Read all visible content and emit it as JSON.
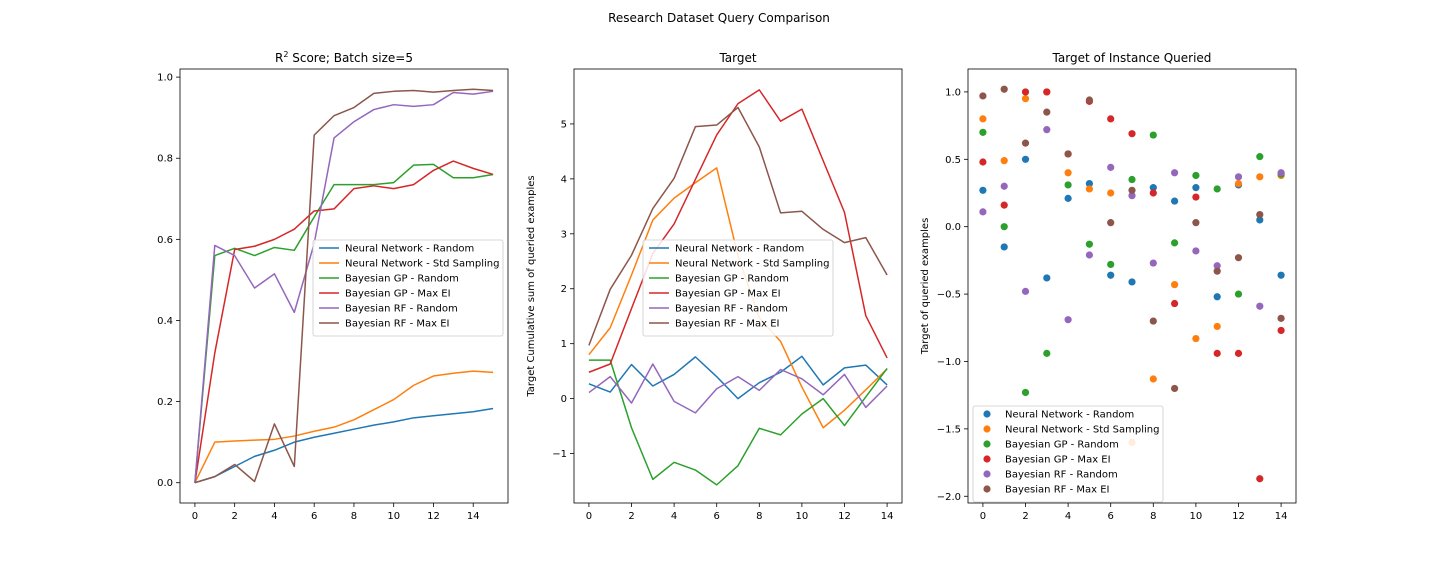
{
  "figure": {
    "suptitle": "Research Dataset Query Comparison"
  },
  "series_names": [
    "Neural Network - Random",
    "Neural Network - Std Sampling",
    "Bayesian GP - Random",
    "Bayesian GP - Max EI",
    "Bayesian RF - Random",
    "Bayesian RF - Max EI"
  ],
  "colors": [
    "#1f77b4",
    "#ff7f0e",
    "#2ca02c",
    "#d62728",
    "#9467bd",
    "#8c564b"
  ],
  "chart_data": [
    {
      "type": "line",
      "title": "R² Score; Batch size=5",
      "xlabel": "",
      "ylabel": "",
      "xlim": [
        -0.75,
        15.75
      ],
      "ylim": [
        -0.05,
        1.02
      ],
      "xticks": [
        0,
        2,
        4,
        6,
        8,
        10,
        12,
        14
      ],
      "yticks": [
        0.0,
        0.2,
        0.4,
        0.6,
        0.8,
        1.0
      ],
      "ytick_labels": [
        "0.0",
        "0.2",
        "0.4",
        "0.6",
        "0.8",
        "1.0"
      ],
      "legend": "center-right",
      "x": [
        0,
        1,
        2,
        3,
        4,
        5,
        6,
        7,
        8,
        9,
        10,
        11,
        12,
        13,
        14,
        15
      ],
      "series": [
        {
          "name": "Neural Network - Random",
          "values": [
            0.0,
            0.015,
            0.04,
            0.065,
            0.08,
            0.1,
            0.112,
            0.122,
            0.132,
            0.142,
            0.15,
            0.16,
            0.165,
            0.17,
            0.175,
            0.183
          ]
        },
        {
          "name": "Neural Network - Std Sampling",
          "values": [
            0.0,
            0.1,
            0.103,
            0.105,
            0.107,
            0.115,
            0.127,
            0.137,
            0.155,
            0.18,
            0.205,
            0.24,
            0.263,
            0.27,
            0.275,
            0.272
          ]
        },
        {
          "name": "Bayesian GP - Random",
          "values": [
            0.0,
            0.56,
            0.578,
            0.56,
            0.58,
            0.573,
            0.655,
            0.735,
            0.735,
            0.735,
            0.74,
            0.783,
            0.785,
            0.752,
            0.752,
            0.76
          ]
        },
        {
          "name": "Bayesian GP - Max EI",
          "values": [
            0.0,
            0.32,
            0.575,
            0.583,
            0.6,
            0.625,
            0.67,
            0.675,
            0.725,
            0.732,
            0.725,
            0.735,
            0.77,
            0.793,
            0.775,
            0.76
          ]
        },
        {
          "name": "Bayesian RF - Random",
          "values": [
            0.0,
            0.585,
            0.56,
            0.48,
            0.515,
            0.42,
            0.59,
            0.85,
            0.89,
            0.92,
            0.932,
            0.928,
            0.932,
            0.962,
            0.958,
            0.965
          ]
        },
        {
          "name": "Bayesian RF - Max EI",
          "values": [
            0.0,
            0.015,
            0.045,
            0.003,
            0.145,
            0.04,
            0.857,
            0.905,
            0.925,
            0.96,
            0.965,
            0.967,
            0.963,
            0.967,
            0.97,
            0.967
          ]
        }
      ]
    },
    {
      "type": "line",
      "title": "Target",
      "xlabel": "",
      "ylabel": "Target Cumulative sum of queried examples",
      "xlim": [
        -0.7,
        14.7
      ],
      "ylim": [
        -1.9,
        6.0
      ],
      "xticks": [
        0,
        2,
        4,
        6,
        8,
        10,
        12,
        14
      ],
      "yticks": [
        -1,
        0,
        1,
        2,
        3,
        4,
        5
      ],
      "ytick_labels": [
        "−1",
        "0",
        "1",
        "2",
        "3",
        "4",
        "5"
      ],
      "legend": "center",
      "x": [
        0,
        1,
        2,
        3,
        4,
        5,
        6,
        7,
        8,
        9,
        10,
        11,
        12,
        13,
        14
      ],
      "series": [
        {
          "name": "Neural Network - Random",
          "values": [
            0.27,
            0.12,
            0.62,
            0.23,
            0.44,
            0.76,
            0.4,
            0.0,
            0.29,
            0.48,
            0.77,
            0.25,
            0.56,
            0.61,
            0.25
          ]
        },
        {
          "name": "Neural Network - Std Sampling",
          "values": [
            0.8,
            1.29,
            2.25,
            3.25,
            3.65,
            3.93,
            4.2,
            2.6,
            1.47,
            1.04,
            0.21,
            -0.53,
            -0.21,
            0.16,
            0.54
          ]
        },
        {
          "name": "Bayesian GP - Random",
          "values": [
            0.7,
            0.7,
            -0.53,
            -1.47,
            -1.16,
            -1.3,
            -1.57,
            -1.22,
            -0.54,
            -0.66,
            -0.28,
            0.0,
            -0.49,
            0.03,
            0.55
          ]
        },
        {
          "name": "Bayesian GP - Max EI",
          "values": [
            0.48,
            0.63,
            1.64,
            2.64,
            3.18,
            3.99,
            4.8,
            5.37,
            5.62,
            5.05,
            5.27,
            4.33,
            3.39,
            1.51,
            0.74
          ]
        },
        {
          "name": "Bayesian RF - Random",
          "values": [
            0.11,
            0.4,
            -0.08,
            0.63,
            -0.05,
            -0.26,
            0.18,
            0.4,
            0.15,
            0.53,
            0.36,
            0.07,
            0.44,
            -0.16,
            0.23
          ]
        },
        {
          "name": "Bayesian RF - Max EI",
          "values": [
            0.97,
            1.99,
            2.61,
            3.46,
            4.01,
            4.95,
            4.98,
            5.3,
            4.58,
            3.38,
            3.41,
            3.08,
            2.84,
            2.93,
            2.25
          ]
        }
      ]
    },
    {
      "type": "scatter",
      "title": "Target of Instance Queried",
      "xlabel": "",
      "ylabel": "Target of queried examples",
      "xlim": [
        -0.7,
        14.7
      ],
      "ylim": [
        -2.05,
        1.17
      ],
      "xticks": [
        0,
        2,
        4,
        6,
        8,
        10,
        12,
        14
      ],
      "yticks": [
        -2.0,
        -1.5,
        -1.0,
        -0.5,
        0.0,
        0.5,
        1.0
      ],
      "ytick_labels": [
        "−2.0",
        "−1.5",
        "−1.0",
        "−0.5",
        "0.0",
        "0.5",
        "1.0"
      ],
      "legend": "lower-left",
      "x": [
        0,
        1,
        2,
        3,
        4,
        5,
        6,
        7,
        8,
        9,
        10,
        11,
        12,
        13,
        14
      ],
      "series": [
        {
          "name": "Neural Network - Random",
          "values": [
            0.27,
            -0.15,
            0.5,
            -0.38,
            0.21,
            0.32,
            -0.36,
            -0.41,
            0.29,
            0.19,
            0.29,
            -0.52,
            0.31,
            0.05,
            -0.36
          ]
        },
        {
          "name": "Neural Network - Std Sampling",
          "values": [
            0.8,
            0.49,
            0.95,
            1.0,
            0.4,
            0.28,
            0.25,
            -1.6,
            -1.13,
            -0.43,
            -0.83,
            -0.74,
            0.32,
            0.37,
            0.38
          ]
        },
        {
          "name": "Bayesian GP - Random",
          "values": [
            0.7,
            0.0,
            -1.23,
            -0.94,
            0.31,
            -0.13,
            -0.28,
            0.35,
            0.68,
            -0.12,
            0.38,
            0.28,
            -0.5,
            0.52,
            0.39
          ]
        },
        {
          "name": "Bayesian GP - Max EI",
          "values": [
            0.48,
            0.16,
            1.0,
            1.0,
            0.54,
            0.93,
            0.8,
            0.69,
            0.25,
            -0.57,
            0.22,
            -0.94,
            -0.94,
            -1.87,
            -0.77
          ]
        },
        {
          "name": "Bayesian RF - Random",
          "values": [
            0.11,
            0.3,
            -0.48,
            0.72,
            -0.69,
            -0.21,
            0.44,
            0.23,
            -0.27,
            0.4,
            -0.18,
            -0.29,
            0.37,
            -0.59,
            0.4
          ]
        },
        {
          "name": "Bayesian RF - Max EI",
          "values": [
            0.97,
            1.02,
            0.62,
            0.85,
            0.54,
            0.94,
            0.03,
            0.27,
            -0.7,
            -1.2,
            0.03,
            -0.33,
            -0.23,
            0.09,
            -0.68
          ]
        }
      ]
    }
  ]
}
